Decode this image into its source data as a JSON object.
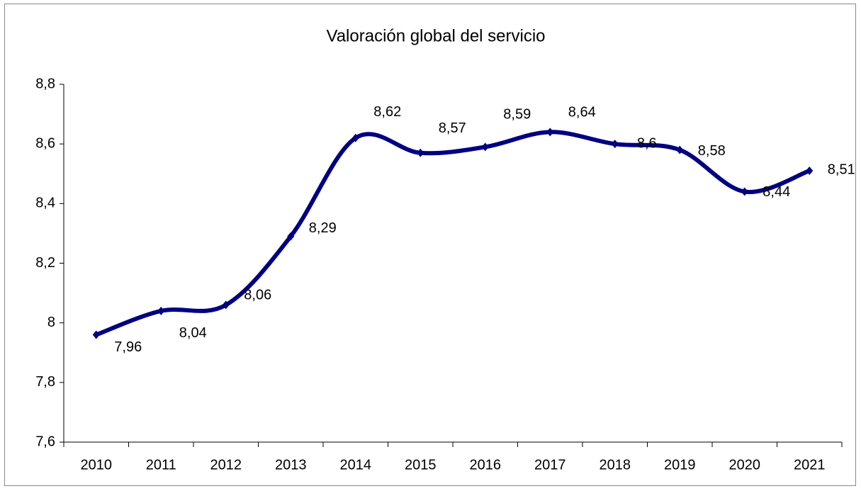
{
  "chart_data": {
    "type": "line",
    "title": "Valoración global del servicio",
    "categories": [
      "2010",
      "2011",
      "2012",
      "2013",
      "2014",
      "2015",
      "2016",
      "2017",
      "2018",
      "2019",
      "2020",
      "2021"
    ],
    "series": [
      {
        "name": "Valoración global del servicio",
        "color": "#000080",
        "values": [
          7.96,
          8.04,
          8.06,
          8.29,
          8.62,
          8.57,
          8.59,
          8.64,
          8.6,
          8.58,
          8.44,
          8.51
        ],
        "value_labels": [
          "7,96",
          "8,04",
          "8,06",
          "8,29",
          "8,62",
          "8,57",
          "8,59",
          "8,64",
          "8,6",
          "8,58",
          "8,44",
          "8,51"
        ]
      }
    ],
    "ylim": [
      7.6,
      8.8
    ],
    "yticks": [
      {
        "value": 7.6,
        "label": "7,6"
      },
      {
        "value": 7.8,
        "label": "7,8"
      },
      8,
      {
        "value": 8.2,
        "label": "8,2"
      },
      {
        "value": 8.4,
        "label": "8,4"
      },
      {
        "value": 8.6,
        "label": "8,6"
      },
      {
        "value": 8.8,
        "label": "8,8"
      }
    ],
    "grid": false,
    "smooth": true
  }
}
